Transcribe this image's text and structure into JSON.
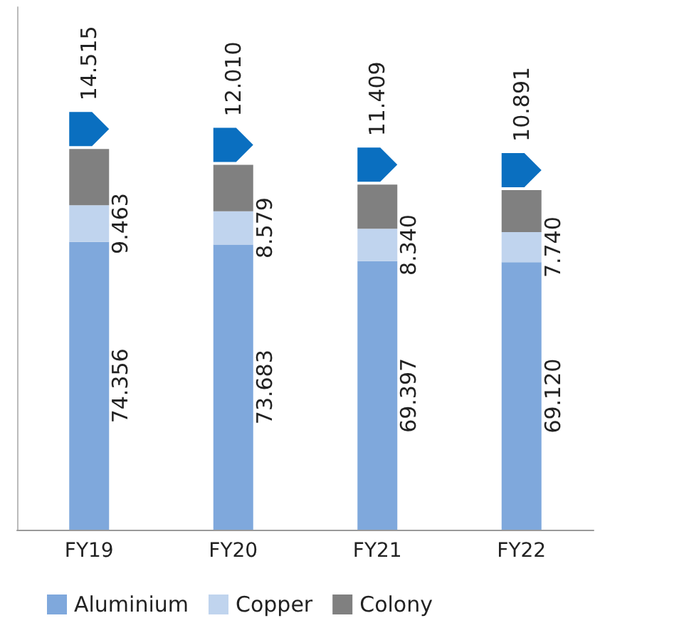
{
  "chart_data": {
    "type": "bar",
    "stacked": true,
    "categories": [
      "FY19",
      "FY20",
      "FY21",
      "FY22"
    ],
    "series": [
      {
        "name": "Aluminium",
        "color": "#7fa8dc",
        "values": [
          74.356,
          73.683,
          69.397,
          69.12
        ],
        "value_labels": [
          "74.356",
          "73.683",
          "69.397",
          "69.120"
        ]
      },
      {
        "name": "Copper",
        "color": "#c0d4ee",
        "values": [
          9.463,
          8.579,
          8.34,
          7.74
        ],
        "value_labels": [
          "9.463",
          "8.579",
          "8.340",
          "7.740"
        ]
      },
      {
        "name": "Colony",
        "color": "#808080",
        "values": [
          14.515,
          12.01,
          11.409,
          10.891
        ],
        "value_labels": [
          "14.515",
          "12.010",
          "11.409",
          "10.891"
        ]
      }
    ],
    "ylim": [
      0,
      135
    ],
    "tick_labels": "x",
    "legend": "bottom left",
    "grid": false
  }
}
